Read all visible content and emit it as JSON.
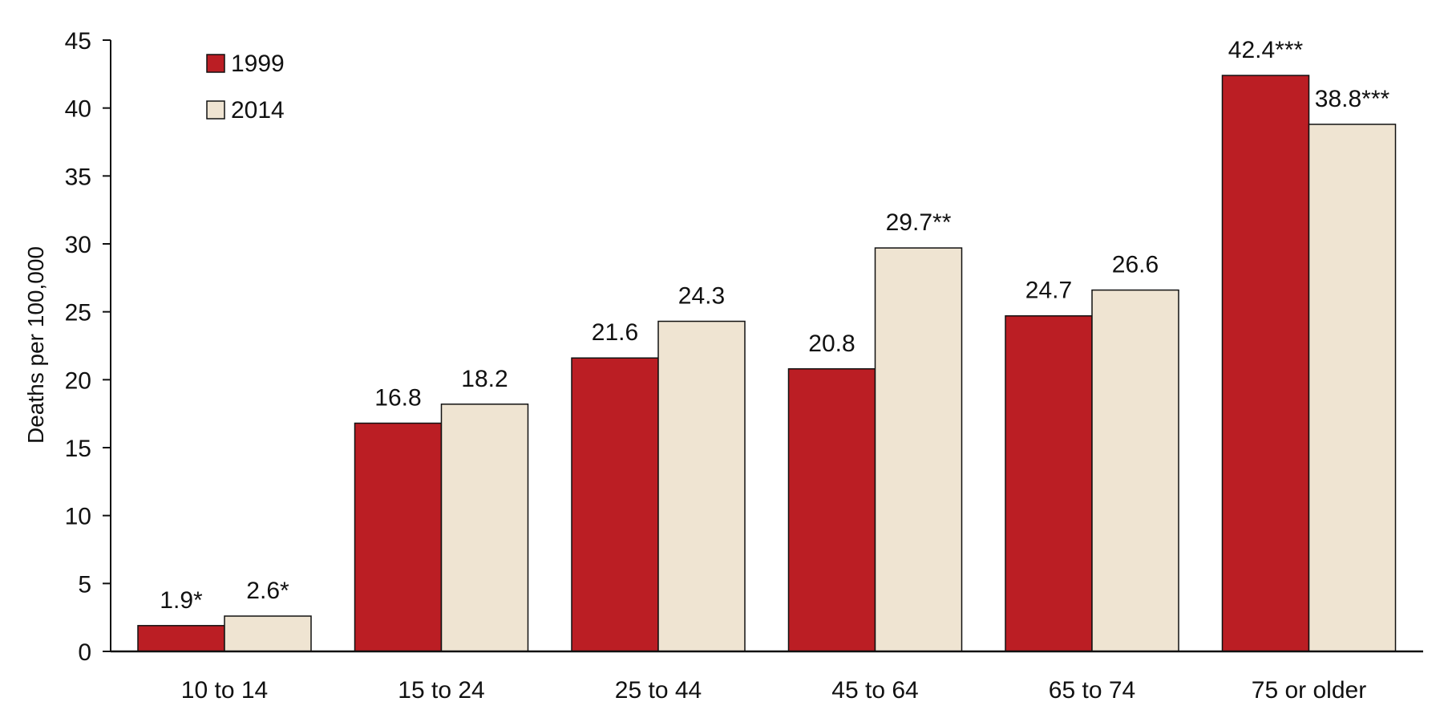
{
  "chart_data": {
    "type": "bar",
    "ylabel": "Deaths per 100,000",
    "xlabel": "",
    "ylim": [
      0,
      45
    ],
    "yticks": [
      0,
      5,
      10,
      15,
      20,
      25,
      30,
      35,
      40,
      45
    ],
    "categories": [
      "10 to 14",
      "15 to 24",
      "25 to 44",
      "45 to 64",
      "65 to 74",
      "75 or older"
    ],
    "series": [
      {
        "name": "1999",
        "color": "#bb1e24",
        "values": [
          1.9,
          16.8,
          21.6,
          20.8,
          24.7,
          42.4
        ],
        "labels": [
          "1.9*",
          "16.8",
          "21.6",
          "20.8",
          "24.7",
          "42.4***"
        ]
      },
      {
        "name": "2014",
        "color": "#efe4d2",
        "values": [
          2.6,
          18.2,
          24.3,
          29.7,
          26.6,
          38.8
        ],
        "labels": [
          "2.6*",
          "18.2",
          "24.3",
          "29.7**",
          "26.6",
          "38.8***"
        ]
      }
    ],
    "legend": {
      "placement": "top-left"
    },
    "grid": false
  }
}
